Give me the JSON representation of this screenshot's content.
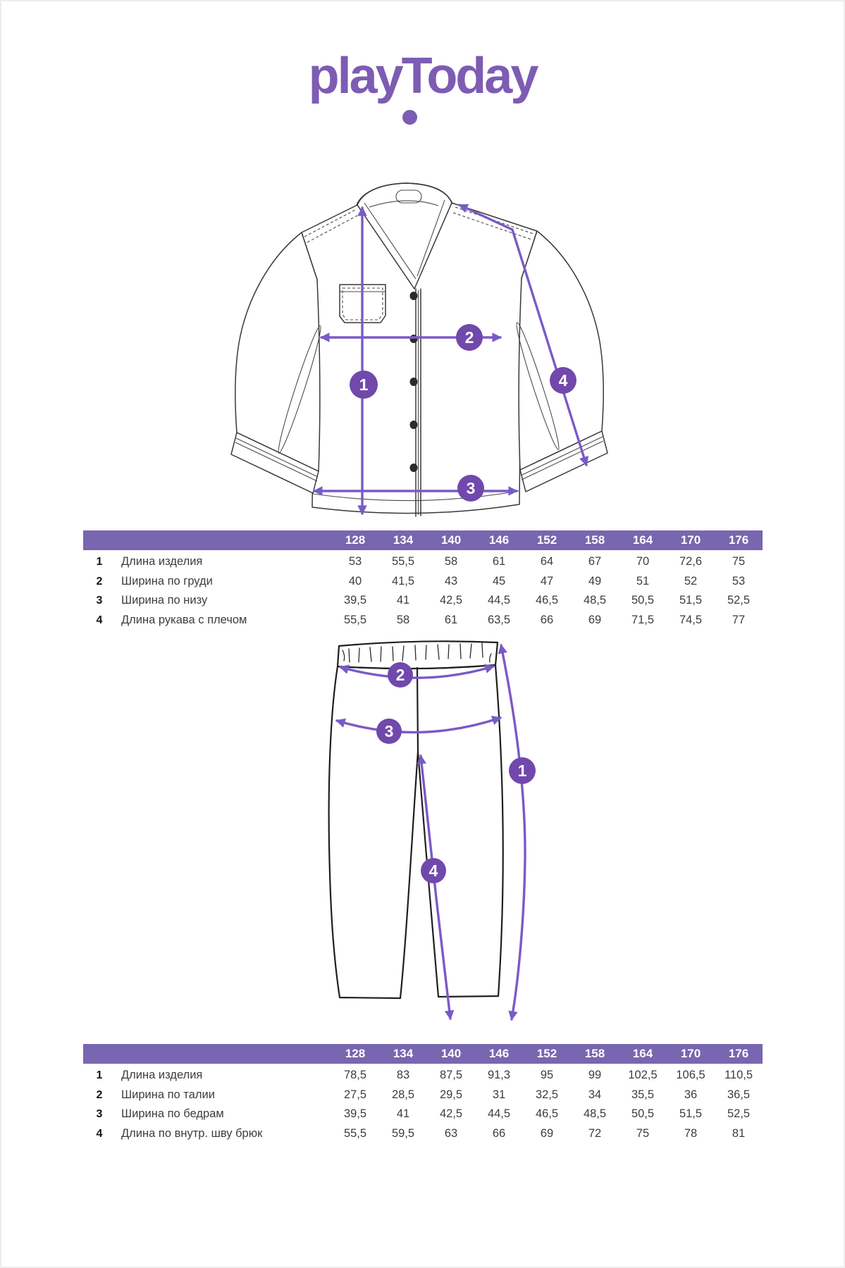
{
  "logo": {
    "text": "playToday",
    "color": "#7d5cb3"
  },
  "colors": {
    "accent_arrow": "#7a5ac6",
    "marker_circle": "#7148ab",
    "table_header_bar": "#7866b0",
    "sketch_line": "#383838",
    "value_text": "#3d3d3d"
  },
  "shirt_diagram": {
    "markers": [
      "1",
      "2",
      "3",
      "4"
    ]
  },
  "pants_diagram": {
    "markers": [
      "1",
      "2",
      "3",
      "4"
    ]
  },
  "size_tables": [
    {
      "id": "shirt",
      "sizes": [
        "128",
        "134",
        "140",
        "146",
        "152",
        "158",
        "164",
        "170",
        "176"
      ],
      "rows": [
        {
          "num": "1",
          "label": "Длина изделия",
          "values": [
            "53",
            "55,5",
            "58",
            "61",
            "64",
            "67",
            "70",
            "72,6",
            "75"
          ]
        },
        {
          "num": "2",
          "label": "Ширина по груди",
          "values": [
            "40",
            "41,5",
            "43",
            "45",
            "47",
            "49",
            "51",
            "52",
            "53"
          ]
        },
        {
          "num": "3",
          "label": "Ширина по низу",
          "values": [
            "39,5",
            "41",
            "42,5",
            "44,5",
            "46,5",
            "48,5",
            "50,5",
            "51,5",
            "52,5"
          ]
        },
        {
          "num": "4",
          "label": "Длина рукава с плечом",
          "values": [
            "55,5",
            "58",
            "61",
            "63,5",
            "66",
            "69",
            "71,5",
            "74,5",
            "77"
          ]
        }
      ]
    },
    {
      "id": "pants",
      "sizes": [
        "128",
        "134",
        "140",
        "146",
        "152",
        "158",
        "164",
        "170",
        "176"
      ],
      "rows": [
        {
          "num": "1",
          "label": "Длина изделия",
          "values": [
            "78,5",
            "83",
            "87,5",
            "91,3",
            "95",
            "99",
            "102,5",
            "106,5",
            "110,5"
          ]
        },
        {
          "num": "2",
          "label": "Ширина по талии",
          "values": [
            "27,5",
            "28,5",
            "29,5",
            "31",
            "32,5",
            "34",
            "35,5",
            "36",
            "36,5"
          ]
        },
        {
          "num": "3",
          "label": "Ширина по бедрам",
          "values": [
            "39,5",
            "41",
            "42,5",
            "44,5",
            "46,5",
            "48,5",
            "50,5",
            "51,5",
            "52,5"
          ]
        },
        {
          "num": "4",
          "label": "Длина по внутр. шву брюк",
          "values": [
            "55,5",
            "59,5",
            "63",
            "66",
            "69",
            "72",
            "75",
            "78",
            "81"
          ]
        }
      ]
    }
  ]
}
